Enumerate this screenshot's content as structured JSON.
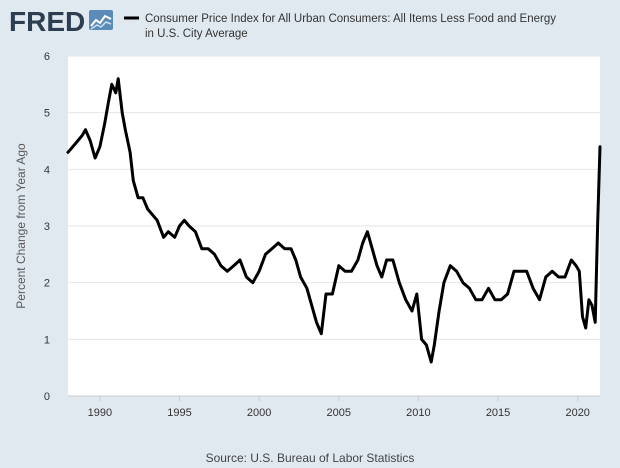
{
  "header": {
    "logo_text": "FRED",
    "legend_line1": "Consumer Price Index for All Urban Consumers: All Items Less Food and Energy",
    "legend_line2": "in U.S. City Average"
  },
  "footer": {
    "source": "Source: U.S. Bureau of Labor Statistics"
  },
  "colors": {
    "background": "#e1e9f0",
    "plot_background": "#ffffff",
    "line": "#000000",
    "grid": "#e6e6e6",
    "logo": "#2c3e50"
  },
  "chart_data": {
    "type": "line",
    "title": "",
    "xlabel": "",
    "ylabel": "Percent Change from Year Ago",
    "xlim": [
      1988.0,
      2021.4
    ],
    "ylim": [
      0,
      6
    ],
    "x_ticks": [
      1990,
      1995,
      2000,
      2005,
      2010,
      2015,
      2020
    ],
    "x_tick_labels": [
      "1990",
      "1995",
      "2000",
      "2005",
      "2010",
      "2015",
      "2020"
    ],
    "y_ticks": [
      0,
      1,
      2,
      3,
      4,
      5,
      6
    ],
    "y_tick_labels": [
      "0",
      "1",
      "2",
      "3",
      "4",
      "5",
      "6"
    ],
    "grid": "horizontal",
    "legend": "top",
    "series": [
      {
        "name": "Consumer Price Index for All Urban Consumers: All Items Less Food and Energy in U.S. City Average",
        "x": [
          1988.0,
          1988.3,
          1988.6,
          1988.9,
          1989.1,
          1989.4,
          1989.7,
          1990.0,
          1990.3,
          1990.55,
          1990.75,
          1991.0,
          1991.15,
          1991.4,
          1991.6,
          1991.9,
          1992.1,
          1992.4,
          1992.7,
          1993.0,
          1993.3,
          1993.6,
          1994.0,
          1994.3,
          1994.7,
          1995.0,
          1995.3,
          1995.6,
          1996.0,
          1996.4,
          1996.8,
          1997.2,
          1997.6,
          1998.0,
          1998.4,
          1998.8,
          1999.2,
          1999.6,
          2000.0,
          2000.4,
          2000.8,
          2001.2,
          2001.6,
          2002.0,
          2002.3,
          2002.6,
          2003.0,
          2003.3,
          2003.6,
          2003.9,
          2004.2,
          2004.6,
          2005.0,
          2005.4,
          2005.8,
          2006.2,
          2006.5,
          2006.8,
          2007.1,
          2007.4,
          2007.7,
          2008.0,
          2008.4,
          2008.8,
          2009.2,
          2009.6,
          2009.9,
          2010.2,
          2010.5,
          2010.8,
          2011.0,
          2011.3,
          2011.6,
          2012.0,
          2012.4,
          2012.8,
          2013.2,
          2013.6,
          2014.0,
          2014.4,
          2014.8,
          2015.2,
          2015.6,
          2016.0,
          2016.4,
          2016.8,
          2017.2,
          2017.6,
          2018.0,
          2018.4,
          2018.8,
          2019.2,
          2019.6,
          2019.9,
          2020.1,
          2020.3,
          2020.5,
          2020.7,
          2020.9,
          2021.1,
          2021.25,
          2021.4
        ],
        "y": [
          4.3,
          4.4,
          4.5,
          4.6,
          4.7,
          4.5,
          4.2,
          4.4,
          4.8,
          5.2,
          5.5,
          5.35,
          5.6,
          5.0,
          4.7,
          4.3,
          3.8,
          3.5,
          3.5,
          3.3,
          3.2,
          3.1,
          2.8,
          2.9,
          2.8,
          3.0,
          3.1,
          3.0,
          2.9,
          2.6,
          2.6,
          2.5,
          2.3,
          2.2,
          2.3,
          2.4,
          2.1,
          2.0,
          2.2,
          2.5,
          2.6,
          2.7,
          2.6,
          2.6,
          2.4,
          2.1,
          1.9,
          1.6,
          1.3,
          1.1,
          1.8,
          1.8,
          2.3,
          2.2,
          2.2,
          2.4,
          2.7,
          2.9,
          2.6,
          2.3,
          2.1,
          2.4,
          2.4,
          2.0,
          1.7,
          1.5,
          1.8,
          1.0,
          0.9,
          0.6,
          0.9,
          1.5,
          2.0,
          2.3,
          2.2,
          2.0,
          1.9,
          1.7,
          1.7,
          1.9,
          1.7,
          1.7,
          1.8,
          2.2,
          2.2,
          2.2,
          1.9,
          1.7,
          2.1,
          2.2,
          2.1,
          2.1,
          2.4,
          2.3,
          2.2,
          1.4,
          1.2,
          1.7,
          1.6,
          1.3,
          3.0,
          4.4
        ]
      }
    ]
  }
}
